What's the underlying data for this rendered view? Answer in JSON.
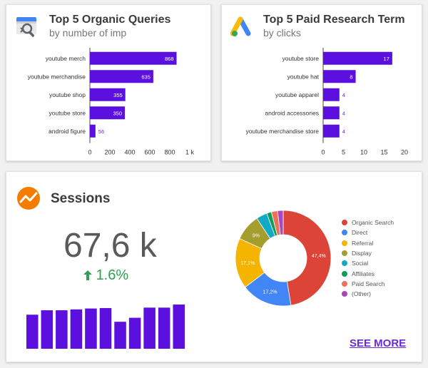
{
  "organic": {
    "title": "Top 5 Organic Queries",
    "subtitle": "by number of imp",
    "icon": "search-console-icon",
    "chart_data": {
      "type": "bar",
      "orientation": "horizontal",
      "categories": [
        "youtube merch",
        "youtube merchandise",
        "youtube shop",
        "youtube store",
        "android figure"
      ],
      "values": [
        868,
        635,
        355,
        350,
        56
      ],
      "value_labels": [
        "868",
        "635",
        "355",
        "350",
        "56"
      ],
      "xlim": [
        0,
        1000
      ],
      "ticks": [
        0,
        200,
        400,
        600,
        800,
        1000
      ],
      "tick_labels": [
        "0",
        "200",
        "400",
        "600",
        "800",
        "1 k"
      ],
      "color": "#5b10e0"
    }
  },
  "paid": {
    "title": "Top 5 Paid Research Term",
    "subtitle": "by clicks",
    "icon": "google-ads-icon",
    "chart_data": {
      "type": "bar",
      "orientation": "horizontal",
      "categories": [
        "youtube store",
        "youtube hat",
        "youtube apparel",
        "android accessories",
        "youtube merchandise store"
      ],
      "values": [
        17,
        8,
        4,
        4,
        4
      ],
      "value_labels": [
        "17",
        "8",
        "4",
        "4",
        "4"
      ],
      "xlim": [
        0,
        20
      ],
      "ticks": [
        0,
        5,
        10,
        15,
        20
      ],
      "tick_labels": [
        "0",
        "5",
        "10",
        "15",
        "20"
      ],
      "color": "#5b10e0"
    }
  },
  "sessions": {
    "title": "Sessions",
    "icon": "analytics-icon",
    "value": "67,6 k",
    "delta": "1.6%",
    "delta_icon": "arrow-up-icon",
    "see_more": "SEE MORE",
    "sparkline": {
      "type": "bar",
      "values": [
        0.77,
        0.87,
        0.87,
        0.89,
        0.91,
        0.92,
        0.61,
        0.7,
        0.93,
        0.93,
        1.0
      ],
      "color": "#5b10e0"
    },
    "chart_data": {
      "type": "pie",
      "donut": true,
      "series": [
        {
          "name": "Organic Search",
          "value": 47.4,
          "label": "47,4%",
          "color": "#db4437"
        },
        {
          "name": "Direct",
          "value": 17.2,
          "label": "17,2%",
          "color": "#4285f4"
        },
        {
          "name": "Referral",
          "value": 17.1,
          "label": "17,1%",
          "color": "#f4b400"
        },
        {
          "name": "Display",
          "value": 9.0,
          "label": "9%",
          "color": "#a59d2d"
        },
        {
          "name": "Social",
          "value": 3.7,
          "label": "",
          "color": "#11a9c6"
        },
        {
          "name": "Affiliates",
          "value": 1.6,
          "label": "",
          "color": "#0f9d58"
        },
        {
          "name": "Paid Search",
          "value": 2.1,
          "label": "",
          "color": "#f0715a"
        },
        {
          "name": "(Other)",
          "value": 1.9,
          "label": "",
          "color": "#ab47bc"
        }
      ]
    }
  }
}
